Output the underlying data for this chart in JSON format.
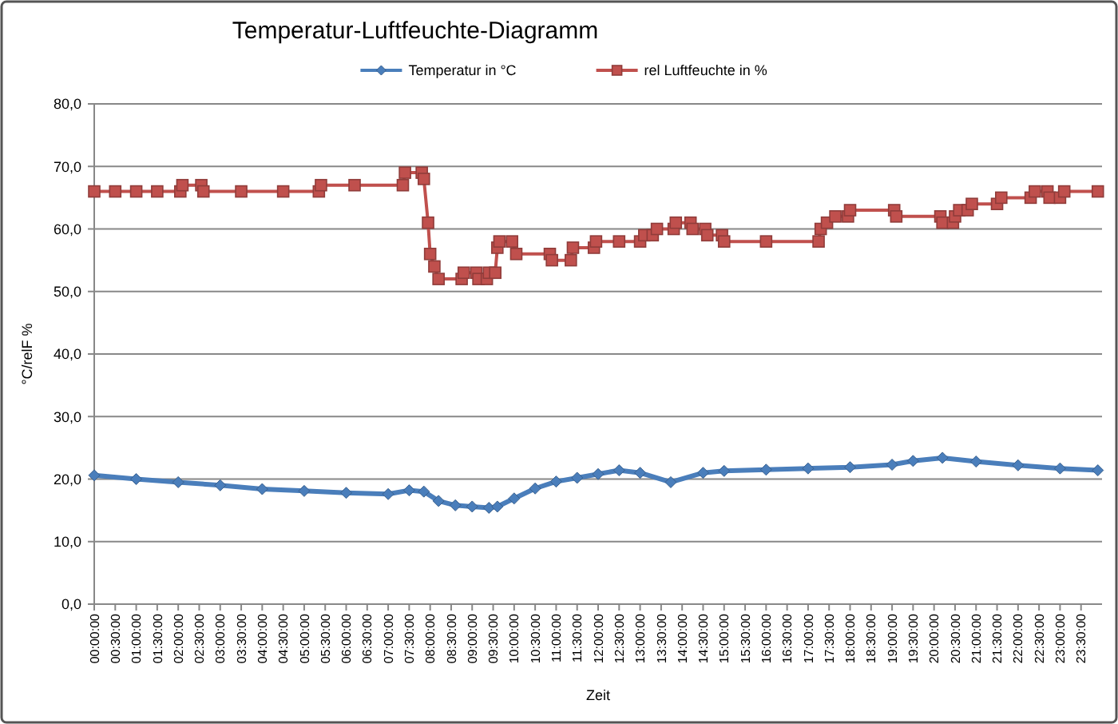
{
  "chart_data": {
    "type": "line",
    "title": "Temperatur-Luftfeuchte-Diagramm",
    "xlabel": "Zeit",
    "ylabel": "°C/relF %",
    "xlim": [
      0,
      24
    ],
    "ylim": [
      0,
      80
    ],
    "yticks": [
      {
        "value": 0,
        "label": "0,0"
      },
      {
        "value": 10,
        "label": "10,0"
      },
      {
        "value": 20,
        "label": "20,0"
      },
      {
        "value": 30,
        "label": "30,0"
      },
      {
        "value": 40,
        "label": "40,0"
      },
      {
        "value": 50,
        "label": "50,0"
      },
      {
        "value": 60,
        "label": "60,0"
      },
      {
        "value": 70,
        "label": "70,0"
      },
      {
        "value": 80,
        "label": "80,0"
      }
    ],
    "xticks": [
      {
        "value": 0,
        "label": "00:00:00"
      },
      {
        "value": 0.5,
        "label": "00:30:00"
      },
      {
        "value": 1,
        "label": "01:00:00"
      },
      {
        "value": 1.5,
        "label": "01:30:00"
      },
      {
        "value": 2,
        "label": "02:00:00"
      },
      {
        "value": 2.5,
        "label": "02:30:00"
      },
      {
        "value": 3,
        "label": "03:00:00"
      },
      {
        "value": 3.5,
        "label": "03:30:00"
      },
      {
        "value": 4,
        "label": "04:00:00"
      },
      {
        "value": 4.5,
        "label": "04:30:00"
      },
      {
        "value": 5,
        "label": "05:00:00"
      },
      {
        "value": 5.5,
        "label": "05:30:00"
      },
      {
        "value": 6,
        "label": "06:00:00"
      },
      {
        "value": 6.5,
        "label": "06:30:00"
      },
      {
        "value": 7,
        "label": "07:00:00"
      },
      {
        "value": 7.5,
        "label": "07:30:00"
      },
      {
        "value": 8,
        "label": "08:00:00"
      },
      {
        "value": 8.5,
        "label": "08:30:00"
      },
      {
        "value": 9,
        "label": "09:00:00"
      },
      {
        "value": 9.5,
        "label": "09:30:00"
      },
      {
        "value": 10,
        "label": "10:00:00"
      },
      {
        "value": 10.5,
        "label": "10:30:00"
      },
      {
        "value": 11,
        "label": "11:00:00"
      },
      {
        "value": 11.5,
        "label": "11:30:00"
      },
      {
        "value": 12,
        "label": "12:00:00"
      },
      {
        "value": 12.5,
        "label": "12:30:00"
      },
      {
        "value": 13,
        "label": "13:00:00"
      },
      {
        "value": 13.5,
        "label": "13:30:00"
      },
      {
        "value": 14,
        "label": "14:00:00"
      },
      {
        "value": 14.5,
        "label": "14:30:00"
      },
      {
        "value": 15,
        "label": "15:00:00"
      },
      {
        "value": 15.5,
        "label": "15:30:00"
      },
      {
        "value": 16,
        "label": "16:00:00"
      },
      {
        "value": 16.5,
        "label": "16:30:00"
      },
      {
        "value": 17,
        "label": "17:00:00"
      },
      {
        "value": 17.5,
        "label": "17:30:00"
      },
      {
        "value": 18,
        "label": "18:00:00"
      },
      {
        "value": 18.5,
        "label": "18:30:00"
      },
      {
        "value": 19,
        "label": "19:00:00"
      },
      {
        "value": 19.5,
        "label": "19:30:00"
      },
      {
        "value": 20,
        "label": "20:00:00"
      },
      {
        "value": 20.5,
        "label": "20:30:00"
      },
      {
        "value": 21,
        "label": "21:00:00"
      },
      {
        "value": 21.5,
        "label": "21:30:00"
      },
      {
        "value": 22,
        "label": "22:00:00"
      },
      {
        "value": 22.5,
        "label": "22:30:00"
      },
      {
        "value": 23,
        "label": "23:00:00"
      },
      {
        "value": 23.5,
        "label": "23:30:00"
      }
    ],
    "grid": "y",
    "legend": "top",
    "line_style": "solid",
    "series": [
      {
        "name": "Temperatur in °C",
        "color": "#4a7ebb",
        "marker": "diamond",
        "x": [
          0,
          1,
          2,
          3,
          4,
          5,
          6,
          7,
          7.5,
          7.85,
          8.2,
          8.6,
          9,
          9.4,
          9.6,
          10,
          10.5,
          11,
          11.5,
          12,
          12.5,
          13,
          13.73,
          14.5,
          15,
          16,
          17,
          18,
          19,
          19.5,
          20.2,
          21,
          22,
          23,
          23.9
        ],
        "values": [
          20.6,
          20,
          19.5,
          19,
          18.4,
          18.1,
          17.8,
          17.6,
          18.2,
          18,
          16.5,
          15.8,
          15.6,
          15.4,
          15.6,
          16.9,
          18.5,
          19.6,
          20.2,
          20.8,
          21.4,
          21,
          19.5,
          21,
          21.3,
          21.5,
          21.7,
          21.9,
          22.3,
          22.9,
          23.4,
          22.8,
          22.2,
          21.7,
          21.4
        ]
      },
      {
        "name": "rel Luftfeuchte in %",
        "color": "#c0504d",
        "marker": "square",
        "x": [
          0,
          0.5,
          1,
          1.5,
          2.05,
          2.1,
          2.55,
          2.6,
          3.5,
          4.5,
          5.35,
          5.4,
          6.2,
          7.35,
          7.4,
          7.8,
          7.85,
          7.95,
          8,
          8.1,
          8.2,
          8.75,
          8.8,
          9.1,
          9.15,
          9.35,
          9.4,
          9.55,
          9.6,
          9.65,
          9.95,
          10.05,
          10.85,
          10.9,
          11.35,
          11.4,
          11.9,
          11.95,
          12.5,
          13,
          13.1,
          13.3,
          13.4,
          13.8,
          13.85,
          14.2,
          14.25,
          14.55,
          14.6,
          14.95,
          15,
          16,
          17.25,
          17.3,
          17.45,
          17.65,
          17.95,
          18,
          19.05,
          19.1,
          20.15,
          20.2,
          20.45,
          20.5,
          20.6,
          20.8,
          20.9,
          21.5,
          21.6,
          22.3,
          22.4,
          22.7,
          22.75,
          23,
          23.1,
          23.9
        ],
        "values": [
          66,
          66,
          66,
          66,
          66,
          67,
          67,
          66,
          66,
          66,
          66,
          67,
          67,
          67,
          69,
          69,
          68,
          61,
          56,
          54,
          52,
          52,
          53,
          53,
          52,
          52,
          53,
          53,
          57,
          58,
          58,
          56,
          56,
          55,
          55,
          57,
          57,
          58,
          58,
          58,
          59,
          59,
          60,
          60,
          61,
          61,
          60,
          60,
          59,
          59,
          58,
          58,
          58,
          60,
          61,
          62,
          62,
          63,
          63,
          62,
          62,
          61,
          61,
          62,
          63,
          63,
          64,
          64,
          65,
          65,
          66,
          66,
          65,
          65,
          66,
          66
        ]
      }
    ]
  }
}
